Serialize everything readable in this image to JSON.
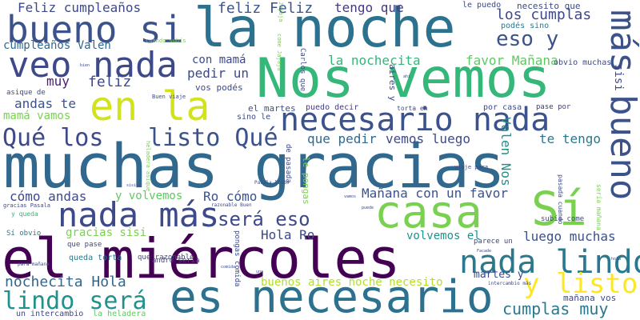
{
  "words": [
    {
      "text": "muchas gracias",
      "color": "#31688e"
    },
    {
      "text": "el miércoles",
      "color": "#440154"
    },
    {
      "text": "la noche",
      "color": "#2c728e"
    },
    {
      "text": "Nos vemos",
      "color": "#35b779"
    },
    {
      "text": "es necesario",
      "color": "#2c728e"
    },
    {
      "text": "casa",
      "color": "#7ad151"
    },
    {
      "text": "Sí",
      "color": "#7ad151"
    },
    {
      "text": "bueno si",
      "color": "#3b528b"
    },
    {
      "text": "veo nada",
      "color": "#3e4989"
    },
    {
      "text": "en la",
      "color": "#d2e21b"
    },
    {
      "text": "nada más",
      "color": "#3e4989"
    },
    {
      "text": "necesario nada",
      "color": "#3b528b"
    },
    {
      "text": "nada lindo",
      "color": "#2a788e"
    },
    {
      "text": "más bueno",
      "color": "#3b528b"
    },
    {
      "text": "y listo",
      "color": "#fde725"
    },
    {
      "text": "listo Qué",
      "color": "#3b528b"
    },
    {
      "text": "Qué los",
      "color": "#3e4989"
    },
    {
      "text": "lindo será",
      "color": "#21918c"
    },
    {
      "text": "será eso",
      "color": "#3e4989"
    },
    {
      "text": "eso y",
      "color": "#3b528b"
    },
    {
      "text": "cumplas muy",
      "color": "#2a788e"
    },
    {
      "text": "nochecita Hola",
      "color": "#31688e"
    },
    {
      "text": "Feliz cumpleaños",
      "color": "#3e4989"
    },
    {
      "text": "feliz Feliz",
      "color": "#3b528b"
    },
    {
      "text": "tengo que",
      "color": "#443983"
    },
    {
      "text": "los cumplas",
      "color": "#3e4989"
    },
    {
      "text": "cumpleaños Valen",
      "color": "#31688e"
    },
    {
      "text": "con mamá",
      "color": "#3e4989"
    },
    {
      "text": "la nochecita",
      "color": "#35b779"
    },
    {
      "text": "favor Mañana",
      "color": "#5ec962"
    },
    {
      "text": "pedir un",
      "color": "#3e4989"
    },
    {
      "text": "muy",
      "color": "#481f70"
    },
    {
      "text": "feliz",
      "color": "#3e4989"
    },
    {
      "text": "andas te",
      "color": "#3b528b"
    },
    {
      "text": "mamá vamos",
      "color": "#7ad151"
    },
    {
      "text": "que pedir",
      "color": "#31688e"
    },
    {
      "text": "vemos luego",
      "color": "#3e4989"
    },
    {
      "text": "te tengo",
      "color": "#2a788e"
    },
    {
      "text": "cómo andas",
      "color": "#3e4989"
    },
    {
      "text": "y volvemos",
      "color": "#5ec962"
    },
    {
      "text": "Ro cómo",
      "color": "#3b528b"
    },
    {
      "text": "Mañana con un favor",
      "color": "#3b528b"
    },
    {
      "text": "gracias sisi",
      "color": "#7ad151"
    },
    {
      "text": "Hola Ro",
      "color": "#3e4989"
    },
    {
      "text": "luego muchas",
      "color": "#3b528b"
    },
    {
      "text": "volvemos el",
      "color": "#21918c"
    },
    {
      "text": "buenos aires noche necesito",
      "color": "#b5de2b"
    },
    {
      "text": "martes y",
      "color": "#3e4989"
    },
    {
      "text": "mañana vos",
      "color": "#3e4989"
    },
    {
      "text": "el martes",
      "color": "#3b528b"
    },
    {
      "text": "puedo decir",
      "color": "#443983"
    },
    {
      "text": "sino le",
      "color": "#3e4989"
    },
    {
      "text": "necesito que",
      "color": "#3e4989"
    },
    {
      "text": "le puedo",
      "color": "#3e4989"
    },
    {
      "text": "podés sino",
      "color": "#2a788e"
    },
    {
      "text": "vos podés",
      "color": "#3e4989"
    },
    {
      "text": "obvio muchas",
      "color": "#3e4989"
    },
    {
      "text": "por casa",
      "color": "#3e4989"
    },
    {
      "text": "pase por",
      "color": "#443983"
    },
    {
      "text": "un intercambio",
      "color": "#3e4989"
    },
    {
      "text": "la heladera",
      "color": "#5ec962"
    },
    {
      "text": "asique de",
      "color": "#3e4989"
    },
    {
      "text": "Buen viaje",
      "color": "#3e4989"
    },
    {
      "text": "torta en",
      "color": "#3e4989"
    },
    {
      "text": "que pase",
      "color": "#3e4989"
    },
    {
      "text": "queda torta",
      "color": "#2a788e"
    },
    {
      "text": "que razonable",
      "color": "#3e4989"
    },
    {
      "text": "Sí obvio",
      "color": "#2a788e"
    },
    {
      "text": "y queda",
      "color": "#35b779"
    },
    {
      "text": "gracias Pasala",
      "color": "#3e4989"
    },
    {
      "text": "para mañana",
      "color": "#3e4989"
    },
    {
      "text": "andro sería",
      "color": "#3e4989"
    },
    {
      "text": "subís come",
      "color": "#3e4989"
    },
    {
      "text": "parece un",
      "color": "#3e4989"
    },
    {
      "text": "intercambio más",
      "color": "#3e4989"
    },
    {
      "text": "cuando subís",
      "color": "#7ad151"
    },
    {
      "text": "razonable Buen",
      "color": "#3e4989"
    },
    {
      "text": "viaje para",
      "color": "#3e4989"
    },
    {
      "text": "Valen Nos",
      "color": "#21918c"
    },
    {
      "text": "le pongas",
      "color": "#7ad151"
    },
    {
      "text": "aires y",
      "color": "#3e4989"
    },
    {
      "text": "de pasada",
      "color": "#3e4989"
    },
    {
      "text": "heladera asique",
      "color": "#7ad151"
    },
    {
      "text": "pongas comida",
      "color": "#3e4989"
    },
    {
      "text": "Carlos que",
      "color": "#3e4989"
    },
    {
      "text": "come Jajaja",
      "color": "#7ad151"
    },
    {
      "text": "Jajaja",
      "color": "#7ad151"
    },
    {
      "text": "sería mañana",
      "color": "#7ad151"
    },
    {
      "text": "pasada cuando",
      "color": "#3e4989"
    },
    {
      "text": "sisi",
      "color": "#3e4989"
    },
    {
      "text": "Pasala lindo",
      "color": "#3e4989"
    },
    {
      "text": "comida",
      "color": "#3e4989"
    },
    {
      "text": "ahí",
      "color": "#3e4989"
    },
    {
      "text": "bien",
      "color": "#3e4989"
    },
    {
      "text": "sisisi",
      "color": "#3e4989"
    },
    {
      "text": "puede",
      "color": "#3e4989"
    },
    {
      "text": "vamos",
      "color": "#3e4989"
    },
    {
      "text": "una",
      "color": "#3e4989"
    },
    {
      "text": "Facade",
      "color": "#3e4989"
    },
    {
      "text": "hola",
      "color": "#3e4989"
    }
  ]
}
